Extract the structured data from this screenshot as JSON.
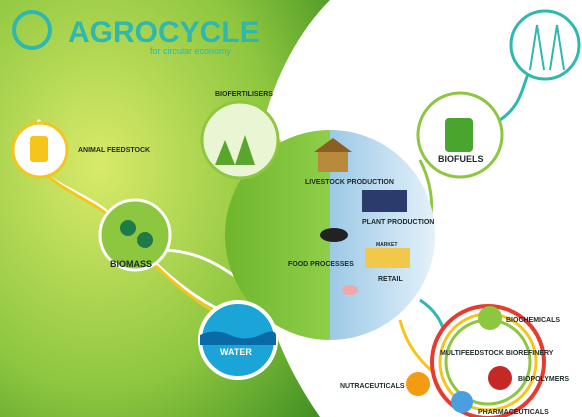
{
  "header": {
    "title": "AGROCYCLE",
    "subtitle": "for circular economy"
  },
  "nodes": [
    {
      "label": "BIOFERTILISERS"
    },
    {
      "label": "ANIMAL FEEDSTOCK"
    },
    {
      "label": "BIOMASS"
    },
    {
      "label": "WATER"
    },
    {
      "label": "LIVESTOCK PRODUCTION"
    },
    {
      "label": "PLANT PRODUCTION"
    },
    {
      "label": "FOOD PROCESSES"
    },
    {
      "label": "MARKET"
    },
    {
      "label": "RETAIL"
    },
    {
      "label": "BIOFUELS"
    },
    {
      "label": "BIOCHEMICALS"
    },
    {
      "label": "MULTIFEEDSTOCK BIOREFINERY"
    },
    {
      "label": "BIOPOLYMERS"
    },
    {
      "label": "NUTRACEUTICALS"
    },
    {
      "label": "PHARMACEUTICALS"
    }
  ]
}
